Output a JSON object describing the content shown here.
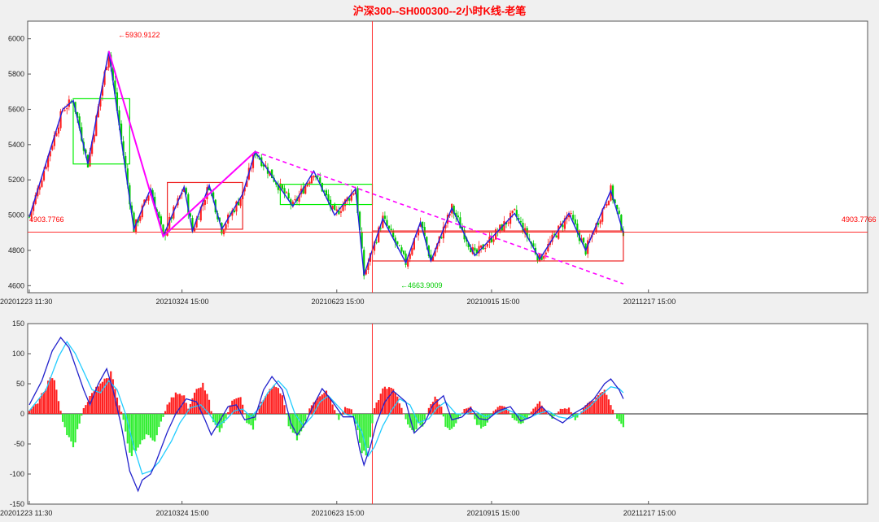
{
  "chart_data": [
    {
      "type": "candlestick",
      "title": "沪深300--SH000300--2小时K线-老笔",
      "x_tick_labels": [
        "20201223 11:30",
        "20210324 15:00",
        "20210623 15:00",
        "20210915 15:00",
        "20211217 15:00"
      ],
      "ylim": [
        4560,
        6100
      ],
      "y_ticks": [
        4600,
        4800,
        5000,
        5200,
        5400,
        5600,
        5800,
        6000
      ],
      "grid": false,
      "annotations": {
        "high": "←5930.9122",
        "low": "←4663.9009",
        "ref_left": "4903.7766",
        "ref_right": "4903.7766"
      },
      "reference_level": 4903.7766,
      "bi_points": [
        [
          0,
          4990
        ],
        [
          16,
          5600
        ],
        [
          21,
          5650
        ],
        [
          28,
          5290
        ],
        [
          38,
          5930
        ],
        [
          50,
          4920
        ],
        [
          58,
          5150
        ],
        [
          64,
          4880
        ],
        [
          74,
          5160
        ],
        [
          78,
          4910
        ],
        [
          86,
          5170
        ],
        [
          92,
          4920
        ],
        [
          102,
          5120
        ],
        [
          108,
          5360
        ],
        [
          126,
          5050
        ],
        [
          136,
          5250
        ],
        [
          146,
          5000
        ],
        [
          156,
          5150
        ],
        [
          160,
          4660
        ],
        [
          169,
          4980
        ],
        [
          180,
          4730
        ],
        [
          187,
          4960
        ],
        [
          192,
          4740
        ],
        [
          202,
          5040
        ],
        [
          213,
          4770
        ],
        [
          232,
          5010
        ],
        [
          244,
          4750
        ],
        [
          258,
          5010
        ],
        [
          266,
          4800
        ],
        [
          278,
          5140
        ],
        [
          284,
          4900
        ]
      ],
      "segments": [
        [
          38,
          5930
        ],
        [
          64,
          4880
        ],
        [
          108,
          5360
        ]
      ],
      "segment_extension": [
        [
          108,
          5360
        ],
        [
          284,
          4610
        ]
      ],
      "zhongshu": [
        {
          "x": [
            21,
            48
          ],
          "y": [
            5290,
            5660
          ],
          "color": "#00ee00"
        },
        {
          "x": [
            66,
            102
          ],
          "y": [
            4920,
            5185
          ],
          "color": "#ee2222"
        },
        {
          "x": [
            120,
            164
          ],
          "y": [
            5060,
            5175
          ],
          "color": "#00ee00"
        },
        {
          "x": [
            164,
            284
          ],
          "y": [
            4740,
            4910
          ],
          "color": "#ee2222"
        }
      ],
      "cursor_x": 164
    },
    {
      "type": "bar",
      "title": "",
      "x_tick_labels": [
        "20201223 11:30",
        "20210324 15:00",
        "20210623 15:00",
        "20210915 15:00",
        "20211217 15:00"
      ],
      "ylim": [
        -150,
        150
      ],
      "y_ticks": [
        -150,
        -100,
        -50,
        0,
        50,
        100,
        150
      ],
      "histogram_anchors": [
        [
          0,
          5
        ],
        [
          4,
          20
        ],
        [
          9,
          55
        ],
        [
          11,
          68
        ],
        [
          14,
          25
        ],
        [
          16,
          -15
        ],
        [
          19,
          -45
        ],
        [
          21,
          -62
        ],
        [
          23,
          -30
        ],
        [
          26,
          10
        ],
        [
          30,
          35
        ],
        [
          34,
          55
        ],
        [
          39,
          72
        ],
        [
          42,
          30
        ],
        [
          45,
          -10
        ],
        [
          48,
          -70
        ],
        [
          52,
          -60
        ],
        [
          56,
          -40
        ],
        [
          60,
          -45
        ],
        [
          63,
          -15
        ],
        [
          66,
          15
        ],
        [
          70,
          38
        ],
        [
          74,
          30
        ],
        [
          76,
          10
        ],
        [
          80,
          46
        ],
        [
          83,
          50
        ],
        [
          86,
          25
        ],
        [
          88,
          -15
        ],
        [
          91,
          -32
        ],
        [
          94,
          -8
        ],
        [
          97,
          25
        ],
        [
          101,
          30
        ],
        [
          104,
          -15
        ],
        [
          107,
          -25
        ],
        [
          110,
          15
        ],
        [
          114,
          38
        ],
        [
          117,
          50
        ],
        [
          121,
          35
        ],
        [
          124,
          -20
        ],
        [
          128,
          -42
        ],
        [
          131,
          -25
        ],
        [
          134,
          10
        ],
        [
          138,
          30
        ],
        [
          142,
          40
        ],
        [
          145,
          15
        ],
        [
          148,
          -10
        ],
        [
          151,
          12
        ],
        [
          154,
          8
        ],
        [
          157,
          -30
        ],
        [
          159,
          -72
        ],
        [
          162,
          -65
        ],
        [
          165,
          10
        ],
        [
          169,
          42
        ],
        [
          172,
          48
        ],
        [
          175,
          40
        ],
        [
          178,
          10
        ],
        [
          181,
          -20
        ],
        [
          184,
          -35
        ],
        [
          186,
          -15
        ],
        [
          188,
          -22
        ],
        [
          191,
          10
        ],
        [
          194,
          30
        ],
        [
          197,
          12
        ],
        [
          199,
          -22
        ],
        [
          202,
          -28
        ],
        [
          205,
          -10
        ],
        [
          208,
          8
        ],
        [
          211,
          12
        ],
        [
          214,
          -20
        ],
        [
          217,
          -25
        ],
        [
          219,
          -15
        ],
        [
          222,
          5
        ],
        [
          225,
          15
        ],
        [
          228,
          12
        ],
        [
          231,
          -8
        ],
        [
          235,
          -18
        ],
        [
          238,
          -8
        ],
        [
          241,
          10
        ],
        [
          244,
          20
        ],
        [
          247,
          5
        ],
        [
          250,
          -8
        ],
        [
          254,
          8
        ],
        [
          258,
          10
        ],
        [
          261,
          -12
        ],
        [
          266,
          15
        ],
        [
          272,
          30
        ],
        [
          275,
          42
        ],
        [
          278,
          15
        ],
        [
          281,
          -8
        ],
        [
          284,
          -25
        ]
      ],
      "dif_anchors": [
        [
          0,
          15
        ],
        [
          6,
          55
        ],
        [
          11,
          105
        ],
        [
          15,
          127
        ],
        [
          19,
          110
        ],
        [
          23,
          70
        ],
        [
          26,
          40
        ],
        [
          29,
          15
        ],
        [
          33,
          50
        ],
        [
          37,
          75
        ],
        [
          40,
          40
        ],
        [
          44,
          -20
        ],
        [
          48,
          -95
        ],
        [
          52,
          -128
        ],
        [
          54,
          -110
        ],
        [
          58,
          -100
        ],
        [
          60,
          -85
        ],
        [
          66,
          -30
        ],
        [
          70,
          0
        ],
        [
          75,
          25
        ],
        [
          80,
          20
        ],
        [
          84,
          -10
        ],
        [
          87,
          -35
        ],
        [
          91,
          -12
        ],
        [
          95,
          12
        ],
        [
          99,
          15
        ],
        [
          103,
          -10
        ],
        [
          108,
          -5
        ],
        [
          112,
          40
        ],
        [
          116,
          62
        ],
        [
          121,
          40
        ],
        [
          125,
          -15
        ],
        [
          128,
          -35
        ],
        [
          132,
          -15
        ],
        [
          136,
          15
        ],
        [
          140,
          42
        ],
        [
          145,
          20
        ],
        [
          150,
          -5
        ],
        [
          155,
          -5
        ],
        [
          158,
          -60
        ],
        [
          160,
          -85
        ],
        [
          163,
          -55
        ],
        [
          166,
          -15
        ],
        [
          170,
          20
        ],
        [
          174,
          38
        ],
        [
          180,
          20
        ],
        [
          184,
          -32
        ],
        [
          189,
          -15
        ],
        [
          193,
          15
        ],
        [
          198,
          30
        ],
        [
          202,
          -10
        ],
        [
          207,
          -5
        ],
        [
          211,
          10
        ],
        [
          215,
          -8
        ],
        [
          219,
          -10
        ],
        [
          224,
          5
        ],
        [
          230,
          12
        ],
        [
          235,
          -12
        ],
        [
          240,
          -5
        ],
        [
          245,
          12
        ],
        [
          250,
          -5
        ],
        [
          255,
          -15
        ],
        [
          260,
          0
        ],
        [
          265,
          10
        ],
        [
          270,
          25
        ],
        [
          275,
          50
        ],
        [
          278,
          58
        ],
        [
          282,
          40
        ],
        [
          284,
          25
        ]
      ],
      "dea_anchors": [
        [
          0,
          5
        ],
        [
          8,
          40
        ],
        [
          14,
          95
        ],
        [
          18,
          120
        ],
        [
          22,
          100
        ],
        [
          26,
          70
        ],
        [
          30,
          40
        ],
        [
          34,
          35
        ],
        [
          38,
          55
        ],
        [
          42,
          40
        ],
        [
          46,
          0
        ],
        [
          50,
          -55
        ],
        [
          54,
          -100
        ],
        [
          58,
          -95
        ],
        [
          62,
          -80
        ],
        [
          68,
          -45
        ],
        [
          72,
          -15
        ],
        [
          77,
          10
        ],
        [
          82,
          15
        ],
        [
          86,
          0
        ],
        [
          90,
          -20
        ],
        [
          94,
          -10
        ],
        [
          98,
          5
        ],
        [
          102,
          8
        ],
        [
          106,
          -5
        ],
        [
          110,
          10
        ],
        [
          114,
          35
        ],
        [
          119,
          55
        ],
        [
          123,
          40
        ],
        [
          127,
          0
        ],
        [
          131,
          -20
        ],
        [
          135,
          -5
        ],
        [
          139,
          20
        ],
        [
          143,
          30
        ],
        [
          147,
          15
        ],
        [
          151,
          0
        ],
        [
          155,
          -5
        ],
        [
          159,
          -30
        ],
        [
          162,
          -70
        ],
        [
          165,
          -55
        ],
        [
          169,
          -20
        ],
        [
          173,
          5
        ],
        [
          177,
          25
        ],
        [
          182,
          15
        ],
        [
          186,
          -15
        ],
        [
          191,
          -8
        ],
        [
          195,
          10
        ],
        [
          199,
          20
        ],
        [
          204,
          0
        ],
        [
          209,
          0
        ],
        [
          213,
          5
        ],
        [
          218,
          -5
        ],
        [
          223,
          0
        ],
        [
          228,
          8
        ],
        [
          233,
          0
        ],
        [
          238,
          -8
        ],
        [
          243,
          0
        ],
        [
          248,
          5
        ],
        [
          253,
          -5
        ],
        [
          258,
          -8
        ],
        [
          263,
          0
        ],
        [
          268,
          12
        ],
        [
          273,
          30
        ],
        [
          278,
          45
        ],
        [
          282,
          42
        ],
        [
          284,
          35
        ]
      ],
      "cursor_x": 164
    }
  ]
}
